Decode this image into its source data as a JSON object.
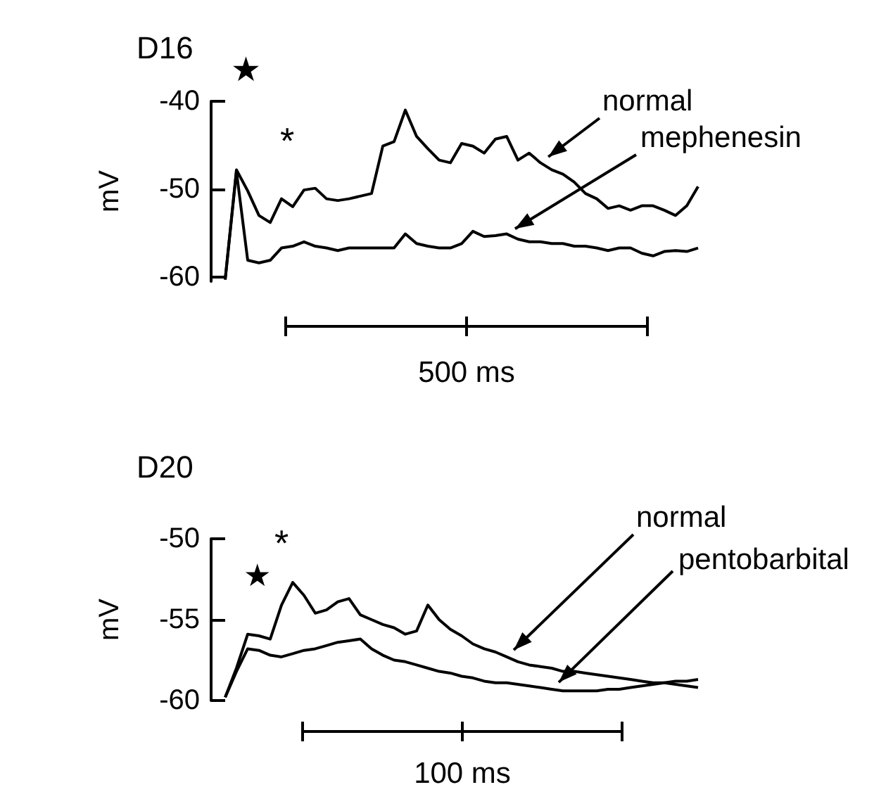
{
  "chart_data": [
    {
      "type": "line",
      "title": "D16",
      "ylabel": "mV",
      "tick_labels": "y",
      "ylim": [
        -60.5,
        -40
      ],
      "yticks": [
        -40,
        -50,
        -60
      ],
      "annotations": [
        "★",
        "*",
        "500 ms"
      ],
      "categories": [
        null,
        null,
        null,
        null,
        null,
        null,
        null,
        null,
        null,
        null,
        null,
        null,
        null,
        null,
        null,
        null,
        null,
        null,
        null,
        null,
        null,
        null,
        null,
        null,
        null,
        null,
        null,
        null,
        null,
        null,
        null,
        null,
        null,
        null,
        null,
        null,
        null,
        null,
        null,
        null,
        null,
        null,
        null
      ],
      "series": [
        {
          "name": "normal",
          "color": "#000000",
          "values": [
            -60.3,
            -47.8,
            -50.2,
            -53.0,
            -53.8,
            -51.1,
            -52.0,
            -50.1,
            -49.9,
            -51.1,
            -51.3,
            -51.1,
            -50.8,
            -50.5,
            -45.1,
            -44.6,
            -41.0,
            -44.0,
            -45.4,
            -46.7,
            -47.0,
            -44.8,
            -45.1,
            -45.9,
            -44.3,
            -44.0,
            -46.7,
            -45.9,
            -47.0,
            -47.8,
            -48.3,
            -49.2,
            -50.5,
            -51.1,
            -52.2,
            -51.9,
            -52.4,
            -51.9,
            -51.9,
            -52.4,
            -53.0,
            -51.9,
            -49.7
          ]
        },
        {
          "name": "mephenesin",
          "color": "#000000",
          "values": [
            -60.3,
            -48.0,
            -58.1,
            -58.4,
            -58.1,
            -56.7,
            -56.5,
            -56.0,
            -56.5,
            -56.7,
            -57.0,
            -56.7,
            -56.7,
            -56.7,
            -56.7,
            -56.7,
            -55.1,
            -56.2,
            -56.5,
            -56.7,
            -56.7,
            -56.2,
            -54.8,
            -55.4,
            -55.3,
            -55.1,
            -55.7,
            -56.0,
            -56.0,
            -56.2,
            -56.2,
            -56.5,
            -56.5,
            -56.7,
            -57.0,
            -56.7,
            -56.7,
            -57.3,
            -57.6,
            -57.1,
            -57.0,
            -57.1,
            -56.7
          ]
        }
      ]
    },
    {
      "type": "line",
      "title": "D20",
      "ylabel": "mV",
      "tick_labels": "y",
      "ylim": [
        -60,
        -50
      ],
      "yticks": [
        -50,
        -55,
        -60
      ],
      "annotations": [
        "★",
        "*",
        "100 ms"
      ],
      "categories": [
        null,
        null,
        null,
        null,
        null,
        null,
        null,
        null,
        null,
        null,
        null,
        null,
        null,
        null,
        null,
        null,
        null,
        null,
        null,
        null,
        null,
        null,
        null,
        null,
        null,
        null,
        null,
        null,
        null,
        null,
        null,
        null,
        null,
        null,
        null,
        null,
        null,
        null,
        null,
        null,
        null,
        null,
        null
      ],
      "series": [
        {
          "name": "normal",
          "color": "#000000",
          "values": [
            -59.8,
            -58.0,
            -55.9,
            -56.0,
            -56.2,
            -54.1,
            -52.7,
            -53.5,
            -54.6,
            -54.4,
            -53.9,
            -53.7,
            -54.7,
            -55.0,
            -55.3,
            -55.5,
            -55.9,
            -55.7,
            -54.1,
            -55.0,
            -55.6,
            -56.0,
            -56.5,
            -56.8,
            -57.0,
            -57.3,
            -57.6,
            -57.8,
            -57.9,
            -58.0,
            -58.2,
            -58.2,
            -58.3,
            -58.4,
            -58.5,
            -58.6,
            -58.7,
            -58.8,
            -58.9,
            -58.9,
            -59.0,
            -59.1,
            -59.2
          ]
        },
        {
          "name": "pentobarbital",
          "color": "#000000",
          "values": [
            -59.8,
            -58.2,
            -56.8,
            -56.9,
            -57.2,
            -57.3,
            -57.1,
            -56.9,
            -56.8,
            -56.6,
            -56.4,
            -56.3,
            -56.2,
            -56.8,
            -57.2,
            -57.5,
            -57.6,
            -57.8,
            -58.0,
            -58.2,
            -58.3,
            -58.5,
            -58.6,
            -58.8,
            -58.9,
            -58.9,
            -59.0,
            -59.1,
            -59.2,
            -59.3,
            -59.4,
            -59.4,
            -59.4,
            -59.4,
            -59.3,
            -59.3,
            -59.2,
            -59.1,
            -59.0,
            -58.9,
            -58.8,
            -58.8,
            -58.7
          ]
        }
      ]
    }
  ]
}
